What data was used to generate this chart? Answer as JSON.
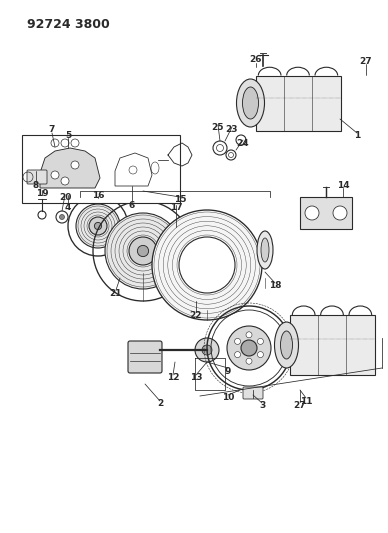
{
  "title": "92724 3800",
  "bg_color": "#ffffff",
  "line_color": "#2a2a2a",
  "title_fontsize": 9,
  "label_fontsize": 6.5,
  "fig_width": 3.88,
  "fig_height": 5.33,
  "dpi": 100
}
